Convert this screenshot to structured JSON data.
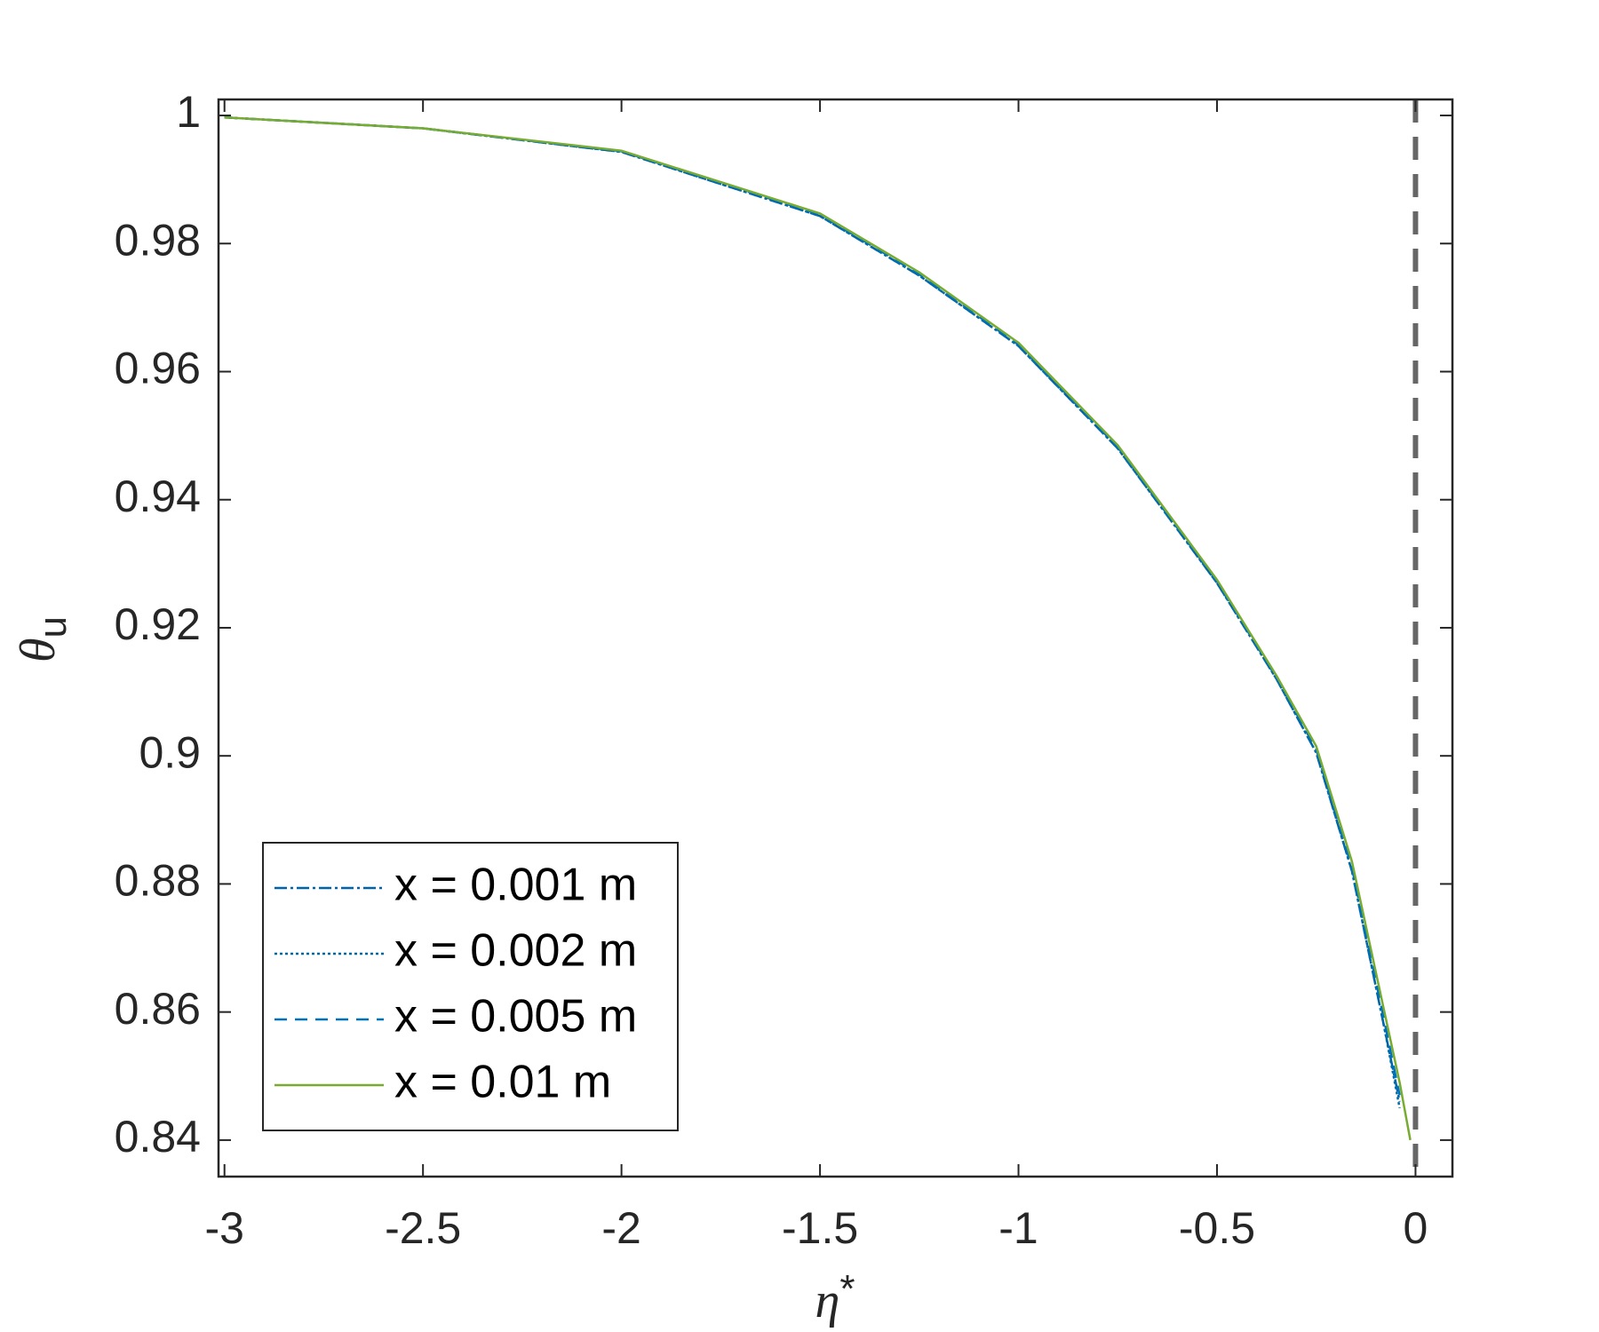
{
  "chart_data": {
    "type": "line",
    "xlabel": "η",
    "xlabel_superscript": "*",
    "ylabel": "θ",
    "ylabel_subscript": "u",
    "x": [
      -3,
      -2.5,
      -2,
      -1.5,
      -1.25,
      -1,
      -0.75,
      -0.5,
      -0.35,
      -0.25,
      -0.16,
      -0.08,
      -0.04,
      -0.013
    ],
    "series": [
      {
        "name": "x = 0.001 m",
        "color": "#0062a8",
        "linestyle": "-.",
        "values": [
          0.9997,
          0.998,
          0.9943,
          0.9843,
          0.975,
          0.964,
          0.948,
          0.927,
          0.912,
          0.9005,
          0.882,
          0.858,
          0.846,
          null
        ]
      },
      {
        "name": "x = 0.002 m",
        "color": "#006aa8",
        "linestyle": ":",
        "values": [
          0.9997,
          0.998,
          0.9943,
          0.9843,
          0.975,
          0.964,
          0.948,
          0.927,
          0.912,
          0.9005,
          0.882,
          0.858,
          0.845,
          null
        ]
      },
      {
        "name": "x = 0.005 m",
        "color": "#0072bd",
        "linestyle": "--",
        "values": [
          0.9997,
          0.998,
          0.9944,
          0.9845,
          0.9752,
          0.9642,
          0.9482,
          0.9272,
          0.9122,
          0.901,
          0.8825,
          0.859,
          0.847,
          null
        ]
      },
      {
        "name": "x = 0.01 m",
        "color": "#77ac30",
        "linestyle": "-",
        "values": [
          0.9997,
          0.998,
          0.9945,
          0.9847,
          0.9755,
          0.9645,
          0.9485,
          0.9275,
          0.9125,
          0.9015,
          0.8835,
          0.8605,
          0.849,
          0.84
        ]
      }
    ],
    "vline": 0,
    "vline_color": "#666666",
    "xlim": [
      -3.015,
      0.093
    ],
    "ylim": [
      0.8343,
      1.0025
    ],
    "xticks": [
      -3,
      -2.5,
      -2,
      -1.5,
      -1,
      -0.5,
      0
    ],
    "yticks": [
      0.84,
      0.86,
      0.88,
      0.9,
      0.92,
      0.94,
      0.96,
      0.98,
      1
    ],
    "legend": "lower left"
  }
}
